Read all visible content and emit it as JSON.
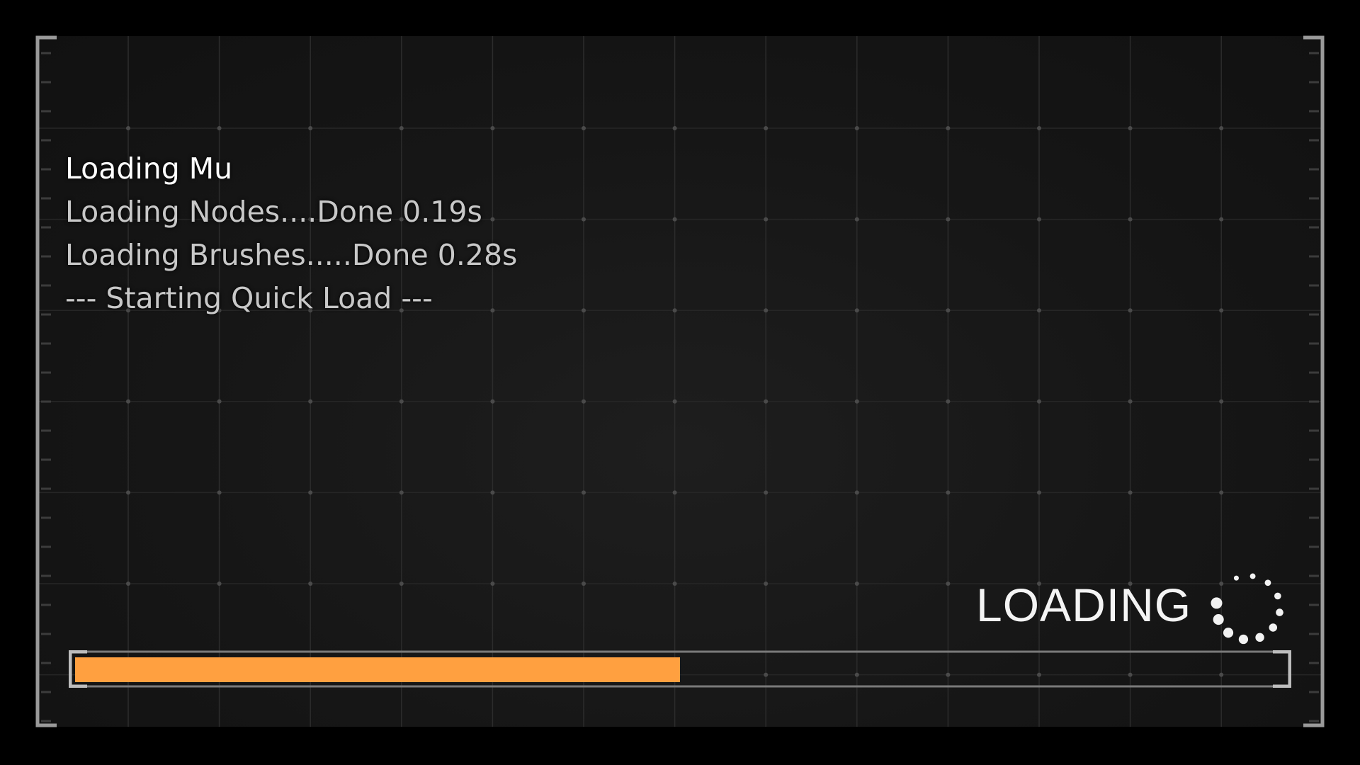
{
  "log": {
    "title": "Loading Mu",
    "lines": [
      "Loading Nodes....Done 0.19s",
      "Loading Brushes.....Done 0.28s",
      "--- Starting Quick Load ---"
    ]
  },
  "loading_indicator": {
    "label": "LOADING",
    "icon": "spinner-dots-icon"
  },
  "progress": {
    "percent": 50,
    "color": "#ffa040"
  }
}
